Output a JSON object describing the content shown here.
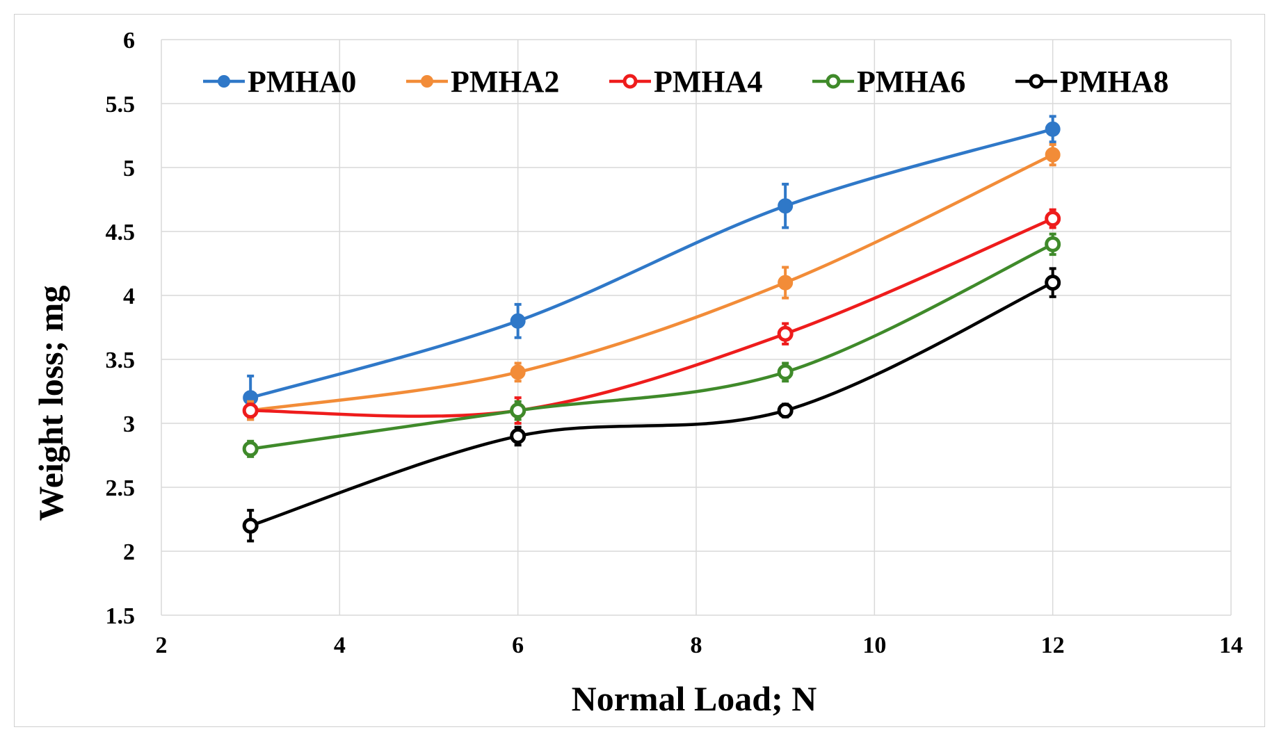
{
  "chart_data": {
    "type": "line",
    "title": "",
    "xlabel": "Normal Load; N",
    "ylabel": "Weight loss; mg",
    "xlim": [
      2,
      14
    ],
    "ylim": [
      1.5,
      6
    ],
    "xticks": [
      2,
      4,
      6,
      8,
      10,
      12,
      14
    ],
    "yticks": [
      1.5,
      2,
      2.5,
      3,
      3.5,
      4,
      4.5,
      5,
      5.5,
      6
    ],
    "xtick_labels": [
      "2",
      "4",
      "6",
      "8",
      "10",
      "12",
      "14"
    ],
    "ytick_labels": [
      "1.5",
      "2",
      "2.5",
      "3",
      "3.5",
      "4",
      "4.5",
      "5",
      "5.5",
      "6"
    ],
    "grid": true,
    "legend_position": "top",
    "smooth": true,
    "x": [
      3,
      6,
      9,
      12
    ],
    "series": [
      {
        "name": "PMHA0",
        "color": "#2f78c8",
        "marker": "filled",
        "values": [
          3.2,
          3.8,
          4.7,
          5.3
        ],
        "errors": [
          0.17,
          0.13,
          0.17,
          0.1
        ]
      },
      {
        "name": "PMHA2",
        "color": "#f28c38",
        "marker": "filled",
        "values": [
          3.1,
          3.4,
          4.1,
          5.1
        ],
        "errors": [
          0.07,
          0.07,
          0.12,
          0.08
        ]
      },
      {
        "name": "PMHA4",
        "color": "#ee1c1c",
        "marker": "hollow",
        "values": [
          3.1,
          3.1,
          3.7,
          4.6
        ],
        "errors": [
          0.05,
          0.1,
          0.08,
          0.07
        ]
      },
      {
        "name": "PMHA6",
        "color": "#3f8a2a",
        "marker": "hollow",
        "values": [
          2.8,
          3.1,
          3.4,
          4.4
        ],
        "errors": [
          0.06,
          0.07,
          0.07,
          0.08
        ]
      },
      {
        "name": "PMHA8",
        "color": "#000000",
        "marker": "hollow",
        "values": [
          2.2,
          2.9,
          3.1,
          4.1
        ],
        "errors": [
          0.12,
          0.07,
          0.05,
          0.11
        ]
      }
    ]
  }
}
